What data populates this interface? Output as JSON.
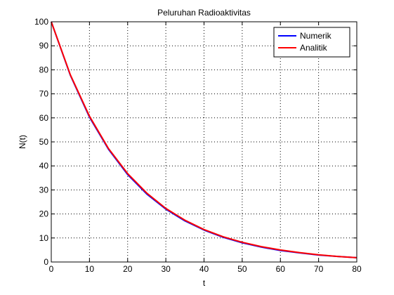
{
  "chart_data": {
    "type": "line",
    "title": "Peluruhan Radioaktivitas",
    "xlabel": "t",
    "ylabel": "N(t)",
    "xlim": [
      0,
      80
    ],
    "ylim": [
      0,
      100
    ],
    "xticks": [
      "0",
      "10",
      "20",
      "30",
      "40",
      "50",
      "60",
      "70",
      "80"
    ],
    "yticks": [
      "0",
      "10",
      "20",
      "30",
      "40",
      "50",
      "60",
      "70",
      "80",
      "90",
      "100"
    ],
    "grid": true,
    "legend_position": "top-right",
    "x": [
      0,
      5,
      10,
      15,
      20,
      25,
      30,
      35,
      40,
      45,
      50,
      55,
      60,
      65,
      70,
      75,
      80
    ],
    "series": [
      {
        "name": "Numerik",
        "color": "#0000ff",
        "values": [
          100,
          77.7,
          60.3,
          46.9,
          36.4,
          28.3,
          22.0,
          17.1,
          13.3,
          10.3,
          8.0,
          6.2,
          4.8,
          3.8,
          2.9,
          2.3,
          1.8
        ]
      },
      {
        "name": "Analitik",
        "color": "#ff0000",
        "values": [
          100,
          77.9,
          60.7,
          47.2,
          36.8,
          28.7,
          22.3,
          17.4,
          13.5,
          10.5,
          8.2,
          6.4,
          5.0,
          3.9,
          3.0,
          2.3,
          1.8
        ]
      }
    ]
  }
}
